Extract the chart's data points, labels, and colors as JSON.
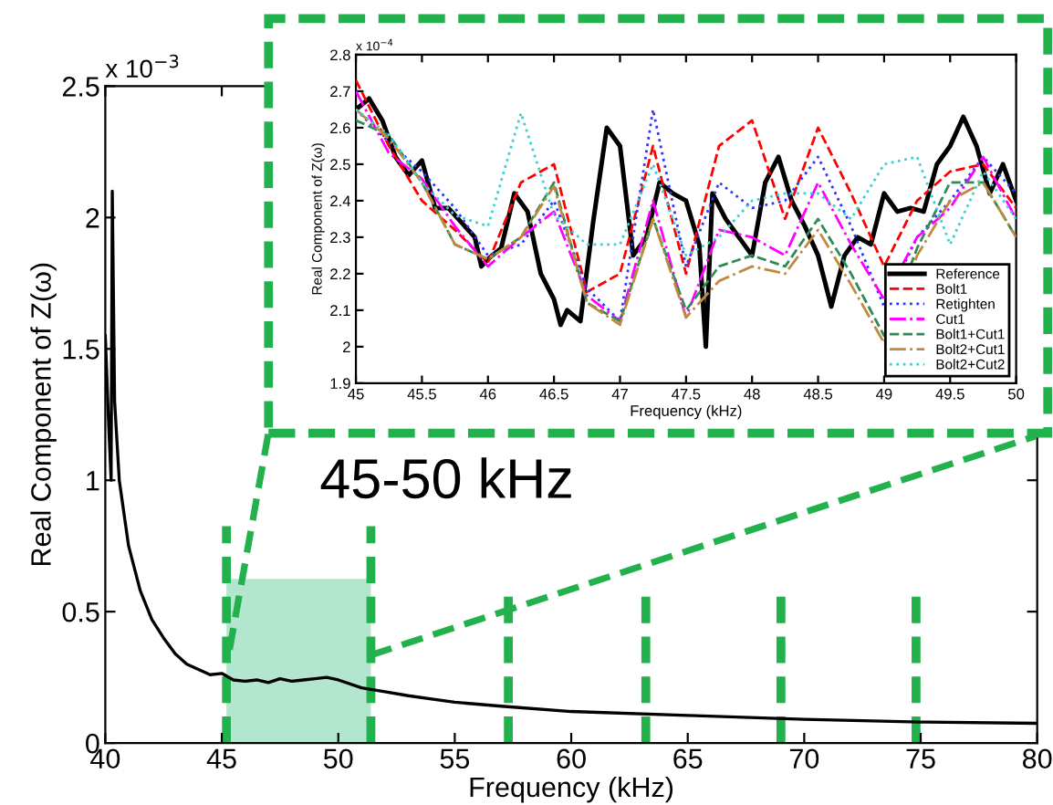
{
  "chart_data": [
    {
      "type": "line",
      "xlabel": "Frequency (kHz)",
      "ylabel": "Real Component of Z(ω)",
      "xlim": [
        40,
        80
      ],
      "ylim": [
        0,
        2.5
      ],
      "xticks": [
        40,
        45,
        50,
        55,
        60,
        65,
        70,
        75,
        80
      ],
      "yticks": [
        0,
        0.5,
        1,
        1.5,
        2,
        2.5
      ],
      "grid": false,
      "legend": false,
      "annotations": [
        "x 10$^{−3}$",
        "45-50 kHz"
      ],
      "series": [
        {
          "color": "#000000",
          "line_style": "solid",
          "x": [
            40.0,
            40.15,
            40.25,
            40.3,
            40.4,
            40.6,
            41,
            41.5,
            42,
            42.5,
            43,
            43.5,
            44,
            44.5,
            45,
            45.5,
            46,
            46.5,
            47,
            47.5,
            48,
            48.5,
            49,
            49.5,
            50,
            51,
            52,
            53,
            55,
            57,
            60,
            65,
            70,
            75,
            80
          ],
          "values": [
            1.55,
            1.2,
            1.0,
            2.1,
            1.3,
            1.0,
            0.75,
            0.58,
            0.47,
            0.4,
            0.34,
            0.3,
            0.28,
            0.26,
            0.265,
            0.24,
            0.235,
            0.24,
            0.23,
            0.245,
            0.235,
            0.24,
            0.245,
            0.25,
            0.24,
            0.21,
            0.195,
            0.18,
            0.155,
            0.14,
            0.12,
            0.105,
            0.09,
            0.08,
            0.075
          ]
        }
      ],
      "ref_lines": [
        {
          "axis": "x",
          "value": 45.2,
          "color": "#22b14c",
          "line_style": "dashed"
        },
        {
          "axis": "x",
          "value": 51.4,
          "color": "#22b14c",
          "line_style": "dashed"
        },
        {
          "axis": "x",
          "value": 57.3,
          "color": "#22b14c",
          "line_style": "dashed"
        },
        {
          "axis": "x",
          "value": 63.2,
          "color": "#22b14c",
          "line_style": "dashed"
        },
        {
          "axis": "x",
          "value": 69.0,
          "color": "#22b14c",
          "line_style": "dashed"
        },
        {
          "axis": "x",
          "value": 74.8,
          "color": "#22b14c",
          "line_style": "dashed"
        }
      ],
      "bands": [
        {
          "axis": "x",
          "from": 45.2,
          "to": 51.4,
          "color": "#b3e6cf"
        }
      ]
    },
    {
      "type": "line",
      "xlabel": "Frequency (kHz)",
      "ylabel": "Real Component of Z(ω)",
      "xlim": [
        45,
        50
      ],
      "ylim": [
        1.9,
        2.8
      ],
      "xticks": [
        45,
        45.5,
        46,
        46.5,
        47,
        47.5,
        48,
        48.5,
        49,
        49.5,
        50
      ],
      "yticks": [
        1.9,
        2,
        2.1,
        2.2,
        2.3,
        2.4,
        2.5,
        2.6,
        2.7,
        2.8
      ],
      "grid": false,
      "legend": "bottom right",
      "annotations": [
        "x 10$^{−4}$"
      ],
      "series": [
        {
          "name": "Reference",
          "color": "#000000",
          "line_style": "solid",
          "x": [
            45.0,
            45.1,
            45.2,
            45.3,
            45.4,
            45.5,
            45.6,
            45.7,
            45.8,
            45.9,
            45.95,
            46.0,
            46.1,
            46.2,
            46.3,
            46.4,
            46.5,
            46.55,
            46.6,
            46.7,
            46.8,
            46.9,
            47.0,
            47.1,
            47.2,
            47.3,
            47.4,
            47.5,
            47.6,
            47.65,
            47.7,
            47.8,
            47.9,
            48.0,
            48.1,
            48.2,
            48.3,
            48.4,
            48.5,
            48.6,
            48.7,
            48.8,
            48.9,
            49.0,
            49.1,
            49.2,
            49.3,
            49.4,
            49.5,
            49.6,
            49.7,
            49.8,
            49.9,
            50.0
          ],
          "values": [
            2.65,
            2.68,
            2.62,
            2.52,
            2.47,
            2.51,
            2.38,
            2.38,
            2.34,
            2.3,
            2.22,
            2.24,
            2.27,
            2.42,
            2.37,
            2.2,
            2.13,
            2.06,
            2.1,
            2.07,
            2.35,
            2.6,
            2.55,
            2.25,
            2.3,
            2.45,
            2.42,
            2.4,
            2.28,
            2.0,
            2.42,
            2.35,
            2.3,
            2.25,
            2.45,
            2.52,
            2.4,
            2.33,
            2.25,
            2.11,
            2.25,
            2.3,
            2.28,
            2.42,
            2.37,
            2.38,
            2.37,
            2.5,
            2.55,
            2.63,
            2.55,
            2.42,
            2.5,
            2.4
          ]
        },
        {
          "name": "Bolt1",
          "color": "#ff0000",
          "line_style": "dashed",
          "x": [
            45,
            45.25,
            45.5,
            45.75,
            46,
            46.25,
            46.5,
            46.75,
            47,
            47.25,
            47.5,
            47.75,
            48,
            48.25,
            48.5,
            48.75,
            49,
            49.25,
            49.5,
            49.75,
            50
          ],
          "values": [
            2.73,
            2.55,
            2.4,
            2.32,
            2.23,
            2.45,
            2.5,
            2.15,
            2.2,
            2.55,
            2.2,
            2.55,
            2.62,
            2.35,
            2.6,
            2.42,
            2.22,
            2.4,
            2.48,
            2.5,
            2.38
          ]
        },
        {
          "name": "Retighten",
          "color": "#3333ff",
          "line_style": "dotted",
          "x": [
            45,
            45.25,
            45.5,
            45.75,
            46,
            46.25,
            46.5,
            46.75,
            47,
            47.25,
            47.5,
            47.75,
            48,
            48.25,
            48.5,
            48.75,
            49,
            49.25,
            49.5,
            49.75,
            50
          ],
          "values": [
            2.65,
            2.56,
            2.48,
            2.38,
            2.25,
            2.28,
            2.4,
            2.16,
            2.07,
            2.65,
            2.22,
            2.45,
            2.38,
            2.4,
            2.52,
            2.33,
            2.11,
            2.3,
            2.4,
            2.52,
            2.42
          ]
        },
        {
          "name": "Cut1",
          "color": "#ff00ff",
          "line_style": "dashdot",
          "x": [
            45,
            45.25,
            45.5,
            45.75,
            46,
            46.25,
            46.5,
            46.75,
            47,
            47.25,
            47.5,
            47.75,
            48,
            48.25,
            48.5,
            48.75,
            49,
            49.25,
            49.5,
            49.75,
            50
          ],
          "values": [
            2.7,
            2.53,
            2.46,
            2.33,
            2.22,
            2.3,
            2.37,
            2.14,
            2.07,
            2.4,
            2.08,
            2.32,
            2.3,
            2.25,
            2.45,
            2.28,
            2.13,
            2.3,
            2.38,
            2.52,
            2.35
          ]
        },
        {
          "name": "Bolt1+Cut1",
          "color": "#2e8b57",
          "line_style": "dashed",
          "x": [
            45,
            45.25,
            45.5,
            45.75,
            46,
            46.25,
            46.5,
            46.75,
            47,
            47.25,
            47.5,
            47.75,
            48,
            48.25,
            48.5,
            48.75,
            49,
            49.25,
            49.5,
            49.75,
            50
          ],
          "values": [
            2.62,
            2.58,
            2.45,
            2.28,
            2.24,
            2.3,
            2.45,
            2.12,
            2.07,
            2.35,
            2.1,
            2.22,
            2.25,
            2.22,
            2.35,
            2.2,
            2.03,
            2.27,
            2.45,
            2.45,
            2.3
          ]
        },
        {
          "name": "Bolt2+Cut1",
          "color": "#c08a3e",
          "line_style": "dashdot",
          "x": [
            45,
            45.25,
            45.5,
            45.75,
            46,
            46.25,
            46.5,
            46.75,
            47,
            47.25,
            47.5,
            47.75,
            48,
            48.25,
            48.5,
            48.75,
            49,
            49.25,
            49.5,
            49.75,
            50
          ],
          "values": [
            2.65,
            2.57,
            2.45,
            2.28,
            2.24,
            2.3,
            2.44,
            2.12,
            2.06,
            2.35,
            2.08,
            2.18,
            2.22,
            2.2,
            2.32,
            2.17,
            2.01,
            2.25,
            2.4,
            2.45,
            2.3
          ]
        },
        {
          "name": "Bolt2+Cut2",
          "color": "#40d0d0",
          "line_style": "dotted",
          "x": [
            45,
            45.25,
            45.5,
            45.75,
            46,
            46.25,
            46.5,
            46.75,
            47,
            47.25,
            47.5,
            47.75,
            48,
            48.25,
            48.5,
            48.75,
            49,
            49.25,
            49.5,
            49.75,
            50
          ],
          "values": [
            2.65,
            2.58,
            2.45,
            2.36,
            2.33,
            2.64,
            2.36,
            2.28,
            2.28,
            2.5,
            2.25,
            2.3,
            2.4,
            2.42,
            2.42,
            2.35,
            2.5,
            2.52,
            2.28,
            2.48,
            2.35
          ]
        }
      ]
    }
  ]
}
